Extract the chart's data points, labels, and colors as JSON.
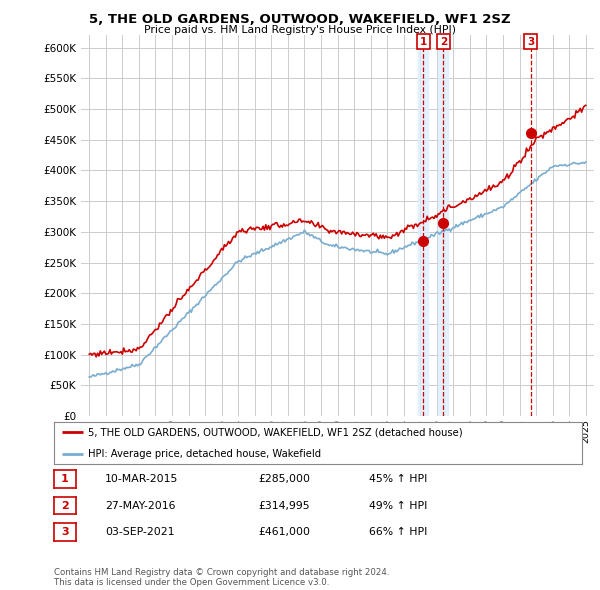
{
  "title": "5, THE OLD GARDENS, OUTWOOD, WAKEFIELD, WF1 2SZ",
  "subtitle": "Price paid vs. HM Land Registry's House Price Index (HPI)",
  "legend_line1": "5, THE OLD GARDENS, OUTWOOD, WAKEFIELD, WF1 2SZ (detached house)",
  "legend_line2": "HPI: Average price, detached house, Wakefield",
  "sale_color": "#cc0000",
  "hpi_color": "#7aadcf",
  "shade_color": "#ddeeff",
  "background_color": "#ffffff",
  "grid_color": "#cccccc",
  "sale_points": [
    {
      "label": "1",
      "date": "10-MAR-2015",
      "price": 285000,
      "x": 2015.19
    },
    {
      "label": "2",
      "date": "27-MAY-2016",
      "price": 314995,
      "x": 2016.4
    },
    {
      "label": "3",
      "date": "03-SEP-2021",
      "price": 461000,
      "x": 2021.67
    }
  ],
  "table_rows": [
    {
      "num": "1",
      "date": "10-MAR-2015",
      "price": "£285,000",
      "pct": "45% ↑ HPI"
    },
    {
      "num": "2",
      "date": "27-MAY-2016",
      "price": "£314,995",
      "pct": "49% ↑ HPI"
    },
    {
      "num": "3",
      "date": "03-SEP-2021",
      "price": "£461,000",
      "pct": "66% ↑ HPI"
    }
  ],
  "footer": "Contains HM Land Registry data © Crown copyright and database right 2024.\nThis data is licensed under the Open Government Licence v3.0.",
  "ylim": [
    0,
    620000
  ],
  "yticks": [
    0,
    50000,
    100000,
    150000,
    200000,
    250000,
    300000,
    350000,
    400000,
    450000,
    500000,
    550000,
    600000
  ],
  "xlim": [
    1994.5,
    2025.5
  ]
}
